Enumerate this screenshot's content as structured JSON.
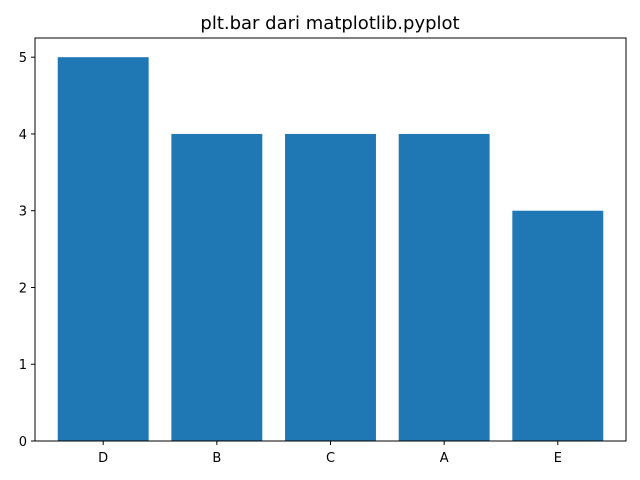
{
  "chart_data": {
    "type": "bar",
    "title": "plt.bar dari matplotlib.pyplot",
    "categories": [
      "D",
      "B",
      "C",
      "A",
      "E"
    ],
    "values": [
      5,
      4,
      4,
      4,
      3
    ],
    "xlabel": "",
    "ylabel": "",
    "ylim": [
      0,
      5.25
    ],
    "yticks": [
      0,
      1,
      2,
      3,
      4,
      5
    ],
    "grid": false,
    "bar_color": "#1f77b4"
  }
}
